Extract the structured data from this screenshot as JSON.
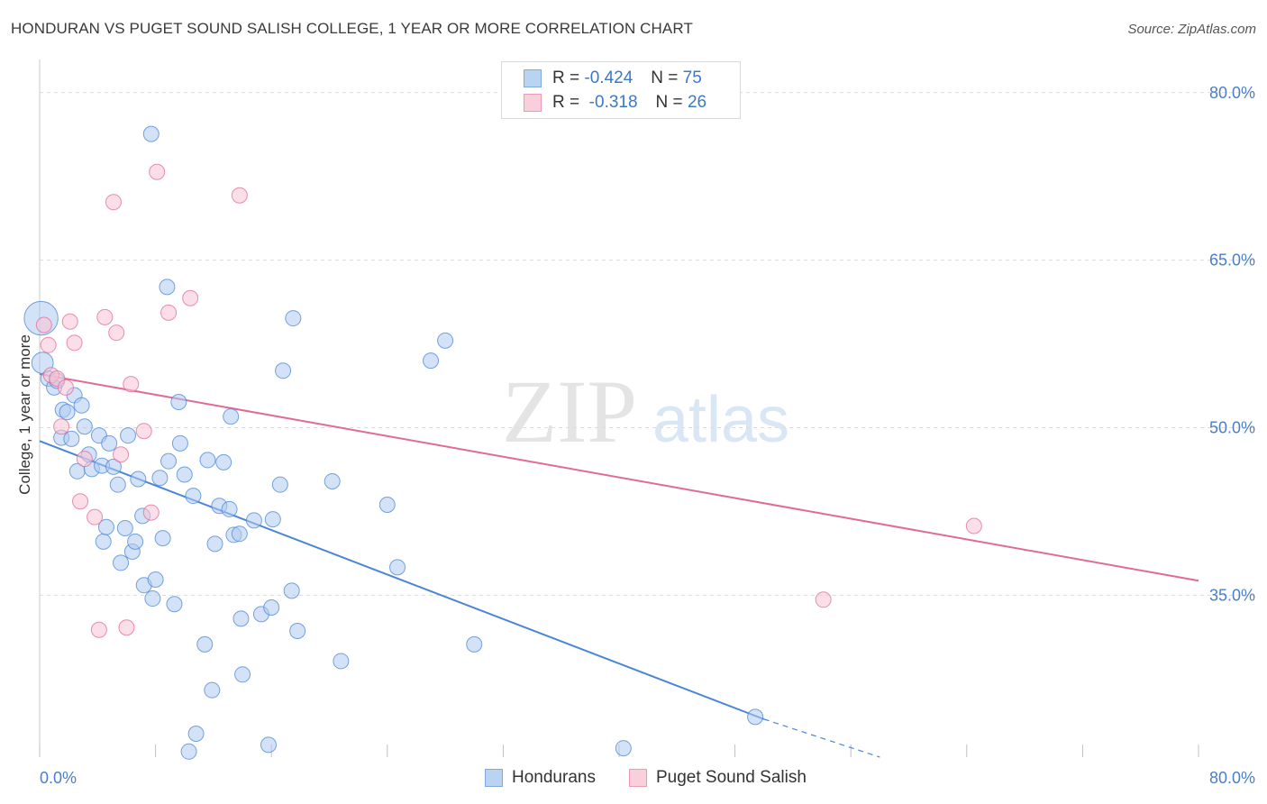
{
  "header": {
    "title": "HONDURAN VS PUGET SOUND SALISH COLLEGE, 1 YEAR OR MORE CORRELATION CHART",
    "source": "Source: ZipAtlas.com"
  },
  "watermark": {
    "zip": "ZIP",
    "atlas": "atlas"
  },
  "legend_top": {
    "rows": [
      {
        "r_label": "R =",
        "r_value": "-0.424",
        "n_label": "N =",
        "n_value": "75",
        "color": "#a9c8f0"
      },
      {
        "r_label": "R =",
        "r_value": "-0.318",
        "n_label": "N =",
        "n_value": "26",
        "color": "#f7bfd0"
      }
    ]
  },
  "chart_data": {
    "type": "scatter",
    "title": "HONDURAN VS PUGET SOUND SALISH COLLEGE, 1 YEAR OR MORE CORRELATION CHART",
    "xlabel": "",
    "ylabel": "College, 1 year or more",
    "xlim": [
      0,
      80
    ],
    "ylim": [
      20.5,
      82
    ],
    "x_tick_labels": [
      "0.0%",
      "80.0%"
    ],
    "y_ticks": [
      35,
      50,
      65,
      80
    ],
    "y_tick_labels": [
      "35.0%",
      "50.0%",
      "65.0%",
      "80.0%"
    ],
    "grid": true,
    "legend_position": "bottom",
    "series": [
      {
        "name": "Hondurans",
        "color": "#4a86d6",
        "fill": "#aecbf1",
        "r": -0.424,
        "n": 75,
        "trend": {
          "x0": 0,
          "y0": 48.8,
          "x1": 50.0,
          "y1": 23.9,
          "dash_to_x": 58.0,
          "dash_to_y": 20.5
        },
        "points": [
          [
            0.1,
            59.8,
            2.2
          ],
          [
            0.2,
            55.8,
            1.4
          ],
          [
            0.6,
            54.4,
            1
          ],
          [
            1.0,
            53.6,
            1
          ],
          [
            1.2,
            54.2,
            1
          ],
          [
            1.5,
            49.1,
            1
          ],
          [
            1.6,
            51.6,
            1
          ],
          [
            1.9,
            51.4,
            1
          ],
          [
            2.2,
            49.0,
            1
          ],
          [
            2.4,
            52.9,
            1
          ],
          [
            2.6,
            46.1,
            1
          ],
          [
            2.9,
            52.0,
            1
          ],
          [
            3.1,
            50.1,
            1
          ],
          [
            3.4,
            47.6,
            1
          ],
          [
            3.6,
            46.3,
            1
          ],
          [
            4.1,
            49.3,
            1
          ],
          [
            4.3,
            46.6,
            1
          ],
          [
            4.4,
            39.8,
            1
          ],
          [
            4.6,
            41.1,
            1
          ],
          [
            4.8,
            48.6,
            1
          ],
          [
            5.1,
            46.5,
            1
          ],
          [
            5.4,
            44.9,
            1
          ],
          [
            5.6,
            37.9,
            1
          ],
          [
            5.9,
            41.0,
            1
          ],
          [
            6.1,
            49.3,
            1
          ],
          [
            6.4,
            38.9,
            1
          ],
          [
            6.6,
            39.8,
            1
          ],
          [
            6.8,
            45.4,
            1
          ],
          [
            7.1,
            42.1,
            1
          ],
          [
            7.2,
            35.9,
            1
          ],
          [
            7.7,
            76.3,
            1
          ],
          [
            7.8,
            34.7,
            1
          ],
          [
            8.0,
            36.4,
            1
          ],
          [
            8.3,
            45.5,
            1
          ],
          [
            8.5,
            40.1,
            1
          ],
          [
            8.8,
            62.6,
            1
          ],
          [
            8.9,
            47.0,
            1
          ],
          [
            9.3,
            34.2,
            1
          ],
          [
            9.6,
            52.3,
            1
          ],
          [
            9.7,
            48.6,
            1
          ],
          [
            10.0,
            45.8,
            1
          ],
          [
            10.3,
            21.0,
            1
          ],
          [
            10.6,
            43.9,
            1
          ],
          [
            10.8,
            22.6,
            1
          ],
          [
            11.4,
            30.6,
            1
          ],
          [
            11.6,
            47.1,
            1
          ],
          [
            11.9,
            26.5,
            1
          ],
          [
            12.1,
            39.6,
            1
          ],
          [
            12.4,
            43.0,
            1
          ],
          [
            12.7,
            46.9,
            1
          ],
          [
            13.1,
            42.7,
            1
          ],
          [
            13.2,
            51.0,
            1
          ],
          [
            13.4,
            40.4,
            1
          ],
          [
            13.8,
            40.5,
            1
          ],
          [
            13.9,
            32.9,
            1
          ],
          [
            14.0,
            27.9,
            1
          ],
          [
            14.8,
            41.7,
            1
          ],
          [
            15.3,
            33.3,
            1
          ],
          [
            15.8,
            21.6,
            1
          ],
          [
            16.0,
            33.9,
            1
          ],
          [
            16.1,
            41.8,
            1
          ],
          [
            16.6,
            44.9,
            1
          ],
          [
            16.8,
            55.1,
            1
          ],
          [
            17.4,
            35.4,
            1
          ],
          [
            17.5,
            59.8,
            1
          ],
          [
            17.8,
            31.8,
            1
          ],
          [
            20.2,
            45.2,
            1
          ],
          [
            20.8,
            29.1,
            1
          ],
          [
            24.0,
            43.1,
            1
          ],
          [
            24.7,
            37.5,
            1
          ],
          [
            27.0,
            56.0,
            1
          ],
          [
            28.0,
            57.8,
            1
          ],
          [
            30.0,
            30.6,
            1
          ],
          [
            40.3,
            21.3,
            1
          ],
          [
            49.4,
            24.1,
            1
          ]
        ]
      },
      {
        "name": "Puget Sound Salish",
        "color": "#e06b96",
        "fill": "#f7c3d3",
        "r": -0.318,
        "n": 26,
        "trend": {
          "x0": 0,
          "y0": 54.8,
          "x1": 80.0,
          "y1": 36.3
        },
        "points": [
          [
            0.3,
            59.2,
            1
          ],
          [
            0.6,
            57.4,
            1
          ],
          [
            0.8,
            54.7,
            1
          ],
          [
            1.2,
            54.4,
            1
          ],
          [
            1.5,
            50.1,
            1
          ],
          [
            1.8,
            53.6,
            1
          ],
          [
            2.1,
            59.5,
            1
          ],
          [
            2.4,
            57.6,
            1
          ],
          [
            2.8,
            43.4,
            1
          ],
          [
            3.1,
            47.2,
            1
          ],
          [
            3.8,
            42.0,
            1
          ],
          [
            4.1,
            31.9,
            1
          ],
          [
            4.5,
            59.9,
            1
          ],
          [
            5.1,
            70.2,
            1
          ],
          [
            5.3,
            58.5,
            1
          ],
          [
            5.6,
            47.6,
            1
          ],
          [
            6.0,
            32.1,
            1
          ],
          [
            6.3,
            53.9,
            1
          ],
          [
            7.2,
            49.7,
            1
          ],
          [
            7.7,
            42.4,
            1
          ],
          [
            8.1,
            72.9,
            1
          ],
          [
            8.9,
            60.3,
            1
          ],
          [
            10.4,
            61.6,
            1
          ],
          [
            13.8,
            70.8,
            1
          ],
          [
            54.1,
            34.6,
            1
          ],
          [
            64.5,
            41.2,
            1
          ]
        ]
      }
    ]
  },
  "bottom_legend": {
    "items": [
      {
        "label": "Hondurans",
        "color": "#a9c8f0"
      },
      {
        "label": "Puget Sound Salish",
        "color": "#f7bfd0"
      }
    ]
  }
}
